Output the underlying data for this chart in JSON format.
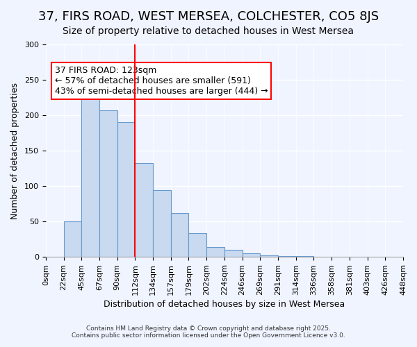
{
  "title": "37, FIRS ROAD, WEST MERSEA, COLCHESTER, CO5 8JS",
  "subtitle": "Size of property relative to detached houses in West Mersea",
  "xlabel": "Distribution of detached houses by size in West Mersea",
  "ylabel": "Number of detached properties",
  "bar_color": "#c8d9f0",
  "bar_edge_color": "#6699cc",
  "background_color": "#f0f4ff",
  "tick_labels": [
    "0sqm",
    "22sqm",
    "45sqm",
    "67sqm",
    "90sqm",
    "112sqm",
    "134sqm",
    "157sqm",
    "179sqm",
    "202sqm",
    "224sqm",
    "246sqm",
    "269sqm",
    "291sqm",
    "314sqm",
    "336sqm",
    "358sqm",
    "381sqm",
    "403sqm",
    "426sqm",
    "448sqm"
  ],
  "bar_values": [
    0,
    50,
    232,
    207,
    190,
    132,
    94,
    62,
    34,
    14,
    10,
    5,
    2,
    1,
    1,
    0,
    0,
    0,
    0,
    0
  ],
  "ylim": [
    0,
    300
  ],
  "yticks": [
    0,
    50,
    100,
    150,
    200,
    250,
    300
  ],
  "property_line_x": 5.0,
  "property_label": "37 FIRS ROAD: 123sqm",
  "annotation_line1": "← 57% of detached houses are smaller (591)",
  "annotation_line2": "43% of semi-detached houses are larger (444) →",
  "footnote1": "Contains HM Land Registry data © Crown copyright and database right 2025.",
  "footnote2": "Contains public sector information licensed under the Open Government Licence v3.0.",
  "title_fontsize": 13,
  "subtitle_fontsize": 10,
  "axis_label_fontsize": 9,
  "tick_fontsize": 8,
  "annotation_fontsize": 9
}
